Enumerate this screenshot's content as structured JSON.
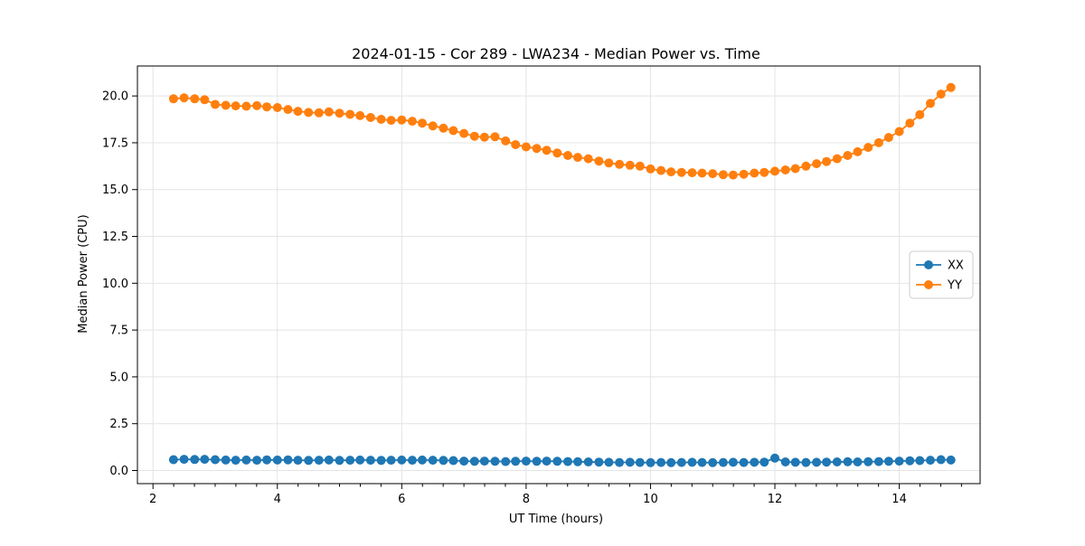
{
  "chart_data": {
    "type": "line",
    "title": "2024-01-15 - Cor 289 - LWA234 - Median Power vs. Time",
    "xlabel": "UT Time (hours)",
    "ylabel": "Median Power (CPU)",
    "xlim": [
      1.75,
      15.3
    ],
    "ylim": [
      -0.7,
      21.6
    ],
    "x_ticks": [
      2,
      4,
      6,
      8,
      10,
      12,
      14
    ],
    "y_ticks": [
      0.0,
      2.5,
      5.0,
      7.5,
      10.0,
      12.5,
      15.0,
      17.5,
      20.0
    ],
    "x_minor_step": 0.333333,
    "grid": true,
    "legend_position": "center right",
    "marker": "circle",
    "x": [
      2.33,
      2.5,
      2.67,
      2.83,
      3.0,
      3.17,
      3.33,
      3.5,
      3.67,
      3.83,
      4.0,
      4.17,
      4.33,
      4.5,
      4.67,
      4.83,
      5.0,
      5.17,
      5.33,
      5.5,
      5.67,
      5.83,
      6.0,
      6.17,
      6.33,
      6.5,
      6.67,
      6.83,
      7.0,
      7.17,
      7.33,
      7.5,
      7.67,
      7.83,
      8.0,
      8.17,
      8.33,
      8.5,
      8.67,
      8.83,
      9.0,
      9.17,
      9.33,
      9.5,
      9.67,
      9.83,
      10.0,
      10.17,
      10.33,
      10.5,
      10.67,
      10.83,
      11.0,
      11.17,
      11.33,
      11.5,
      11.67,
      11.83,
      12.0,
      12.17,
      12.33,
      12.5,
      12.67,
      12.83,
      13.0,
      13.17,
      13.33,
      13.5,
      13.67,
      13.83,
      14.0,
      14.17,
      14.33,
      14.5,
      14.67,
      14.83
    ],
    "series": [
      {
        "name": "XX",
        "color": "#1f77b4",
        "values": [
          0.58,
          0.6,
          0.59,
          0.6,
          0.58,
          0.56,
          0.55,
          0.56,
          0.55,
          0.57,
          0.56,
          0.57,
          0.55,
          0.54,
          0.55,
          0.56,
          0.54,
          0.55,
          0.56,
          0.55,
          0.54,
          0.55,
          0.56,
          0.55,
          0.56,
          0.55,
          0.54,
          0.53,
          0.5,
          0.49,
          0.5,
          0.49,
          0.48,
          0.49,
          0.5,
          0.49,
          0.5,
          0.49,
          0.48,
          0.47,
          0.46,
          0.45,
          0.44,
          0.43,
          0.44,
          0.43,
          0.42,
          0.43,
          0.42,
          0.43,
          0.44,
          0.43,
          0.42,
          0.43,
          0.44,
          0.43,
          0.44,
          0.45,
          0.66,
          0.46,
          0.44,
          0.43,
          0.44,
          0.45,
          0.46,
          0.47,
          0.46,
          0.47,
          0.48,
          0.49,
          0.5,
          0.52,
          0.53,
          0.55,
          0.58,
          0.56
        ]
      },
      {
        "name": "YY",
        "color": "#ff7f0e",
        "values": [
          19.85,
          19.9,
          19.85,
          19.8,
          19.55,
          19.5,
          19.47,
          19.45,
          19.48,
          19.42,
          19.38,
          19.28,
          19.18,
          19.12,
          19.1,
          19.15,
          19.08,
          19.02,
          18.95,
          18.85,
          18.75,
          18.7,
          18.72,
          18.65,
          18.55,
          18.4,
          18.28,
          18.15,
          18.0,
          17.85,
          17.8,
          17.82,
          17.6,
          17.4,
          17.28,
          17.2,
          17.1,
          16.95,
          16.82,
          16.72,
          16.65,
          16.52,
          16.42,
          16.35,
          16.3,
          16.25,
          16.1,
          16.02,
          15.95,
          15.92,
          15.9,
          15.88,
          15.85,
          15.8,
          15.78,
          15.82,
          15.88,
          15.92,
          15.98,
          16.05,
          16.12,
          16.25,
          16.38,
          16.5,
          16.65,
          16.82,
          17.02,
          17.25,
          17.5,
          17.78,
          18.1,
          18.55,
          19.0,
          19.6,
          20.1,
          20.45
        ]
      }
    ]
  }
}
